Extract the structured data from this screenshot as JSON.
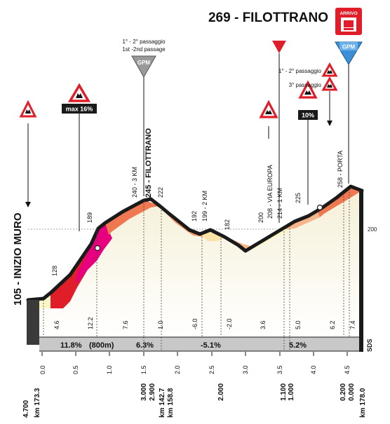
{
  "finish": {
    "title": "269 - FILOTTRANO",
    "arrivo_label": "ARRIVO",
    "gpm_label": "GPM"
  },
  "gpm_left": {
    "line1": "1° - 2° passaggio",
    "line2": "1st -2nd passage",
    "label": "GPM"
  },
  "warnings": {
    "max_slope": "max 16%",
    "slope_10": "10%",
    "passaggio_12": "1° - 2° passaggio",
    "passaggio_3": "3° passaggio"
  },
  "start": {
    "label": "105 - INIZIO MURO",
    "km_total": "km 173.3",
    "km_to_go": "4.700"
  },
  "altitude_labels": [
    "128",
    "189",
    "240 - 3 KM",
    "245 - FILOTTRANO",
    "222",
    "192",
    "199 - 2 KM",
    "182",
    "200",
    "208 - VIA EUROPA",
    "214 - 1 KM",
    "225",
    "258 - PORTA"
  ],
  "altitude_reference": "200",
  "gradients": {
    "bar": [
      "11.8%",
      "(800m)",
      "6.3%",
      "-5.1%",
      "5.2%"
    ],
    "segments": [
      "4.6",
      "12.2",
      "7.6",
      "1.0",
      "-6.0",
      "-2.0",
      "3.6",
      "5.0",
      "6.2",
      "7.4"
    ]
  },
  "km_scale": [
    "0.0",
    "0.5",
    "1.0",
    "1.5",
    "2.0",
    "2.5",
    "3.0",
    "3.5",
    "4.0",
    "4.5"
  ],
  "bottom_labels": {
    "d1": "3.000",
    "d2": "2.900",
    "km1": "km 142.7",
    "km2": "km 158.8",
    "d3": "2.000",
    "d4": "1.100",
    "d5": "1.000",
    "d6": "0.200",
    "d7": "0.000",
    "km_finish": "km 178.0"
  },
  "sds": "SDS",
  "colors": {
    "steep": "#e01e2a",
    "very_steep": "#e6007e",
    "medium": "#f07850",
    "light": "#f7b58a",
    "pale": "#fbf6c8",
    "road": "#1a1a1a",
    "gradient_bar": "#c8c8c8"
  }
}
